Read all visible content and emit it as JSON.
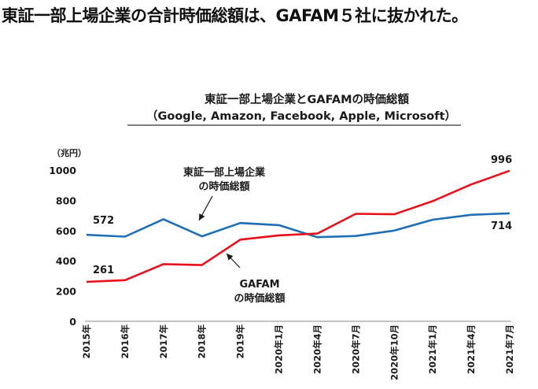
{
  "headline": "東証一部上場企業の合計時価総額は、GAFAM５社に抜かれた。",
  "chart_data": {
    "type": "line",
    "title": "東証一部上場企業とGAFAMの時価総額",
    "subtitle": "（Google, Amazon, Facebook, Apple, Microsoft）",
    "y_unit": "（兆円）",
    "ylim": [
      0,
      1000
    ],
    "yticks": [
      "0",
      "200",
      "400",
      "600",
      "800",
      "1000"
    ],
    "categories": [
      "2015年",
      "2016年",
      "2017年",
      "2018年",
      "2019年",
      "2020年1月",
      "2020年4月",
      "2020年7月",
      "2020年10月",
      "2021年1月",
      "2021年4月",
      "2021年7月"
    ],
    "grid": false,
    "series": [
      {
        "color": "#1f6fb4",
        "values": [
          572,
          560,
          675,
          562,
          650,
          636,
          556,
          564,
          600,
          672,
          704,
          714
        ],
        "annotation": [
          "東証一部上場企業",
          "の時価総額"
        ],
        "start_label": "572",
        "end_label": "714"
      },
      {
        "color": "#e8101a",
        "values": [
          261,
          272,
          378,
          372,
          540,
          568,
          580,
          711,
          708,
          795,
          905,
          996
        ],
        "annotation": [
          "GAFAM",
          "の時価総額"
        ],
        "start_label": "261",
        "end_label": "996"
      }
    ]
  }
}
